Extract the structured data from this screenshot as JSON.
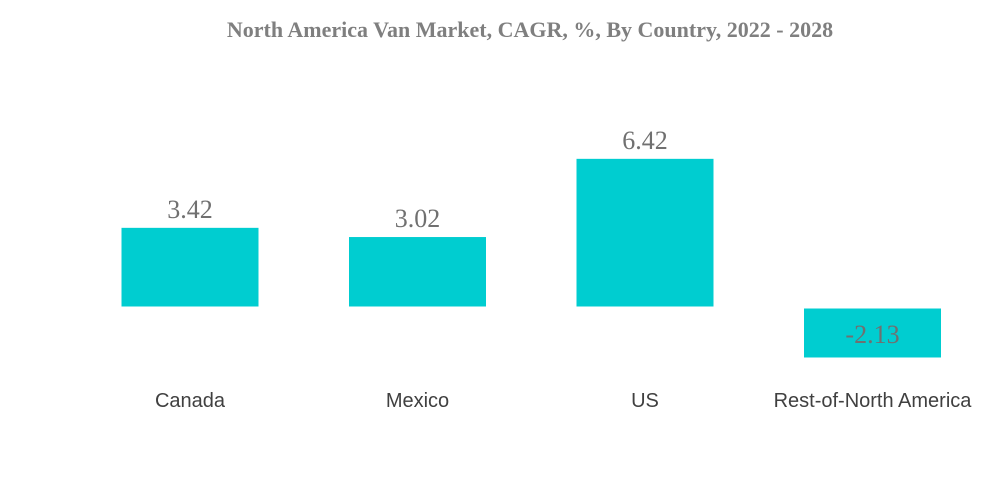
{
  "chart_data": {
    "type": "bar",
    "title": "North America Van Market, CAGR, %, By Country, 2022 - 2028",
    "xlabel": "",
    "ylabel": "",
    "categories": [
      "Canada",
      "Mexico",
      "US",
      "Rest-of-North America"
    ],
    "values": [
      3.42,
      3.02,
      6.42,
      -2.13
    ],
    "value_labels": [
      "3.42",
      "3.02",
      "6.42",
      "-2.13"
    ],
    "ylim": [
      -2.13,
      6.42
    ],
    "grid": false,
    "legend": "none",
    "bar_color": "#00cdd0",
    "label_color": "#707070",
    "negative_label_color": "#b07878"
  }
}
